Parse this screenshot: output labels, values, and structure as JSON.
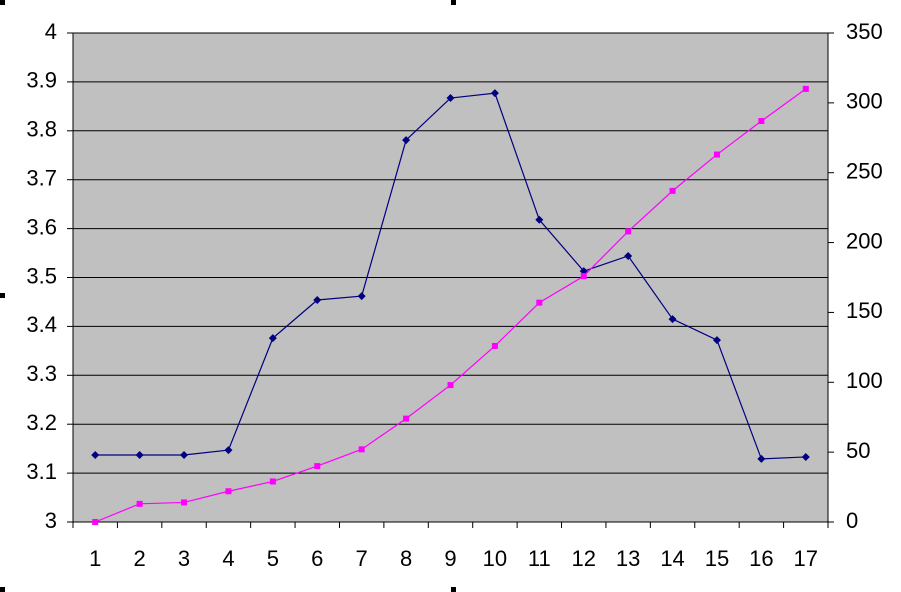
{
  "chart_data": {
    "type": "line",
    "categories": [
      "1",
      "2",
      "3",
      "4",
      "5",
      "6",
      "7",
      "8",
      "9",
      "10",
      "11",
      "12",
      "13",
      "14",
      "15",
      "16",
      "17"
    ],
    "series": [
      {
        "color": "#000080",
        "marker": "diamond",
        "values": [
          3.137,
          3.137,
          3.137,
          3.147,
          3.376,
          3.454,
          3.462,
          3.781,
          3.867,
          3.877,
          3.618,
          3.513,
          3.544,
          3.415,
          3.372,
          3.129,
          3.133
        ]
      },
      {
        "color": "#ff00ff",
        "marker": "square",
        "axis": "y2",
        "values": [
          0,
          13,
          14,
          22,
          29,
          40,
          52,
          74,
          98,
          126,
          157,
          176,
          208,
          237,
          263,
          287,
          310
        ]
      }
    ],
    "ylim": [
      3,
      4
    ],
    "yticks": [
      3,
      3.1,
      3.2,
      3.3,
      3.4,
      3.5,
      3.6,
      3.7,
      3.8,
      3.9,
      4
    ],
    "y2lim": [
      0,
      350
    ],
    "y2ticks": [
      0,
      50,
      100,
      150,
      200,
      250,
      300,
      350
    ],
    "grid": true,
    "plot_background": "#c0c0c0"
  }
}
